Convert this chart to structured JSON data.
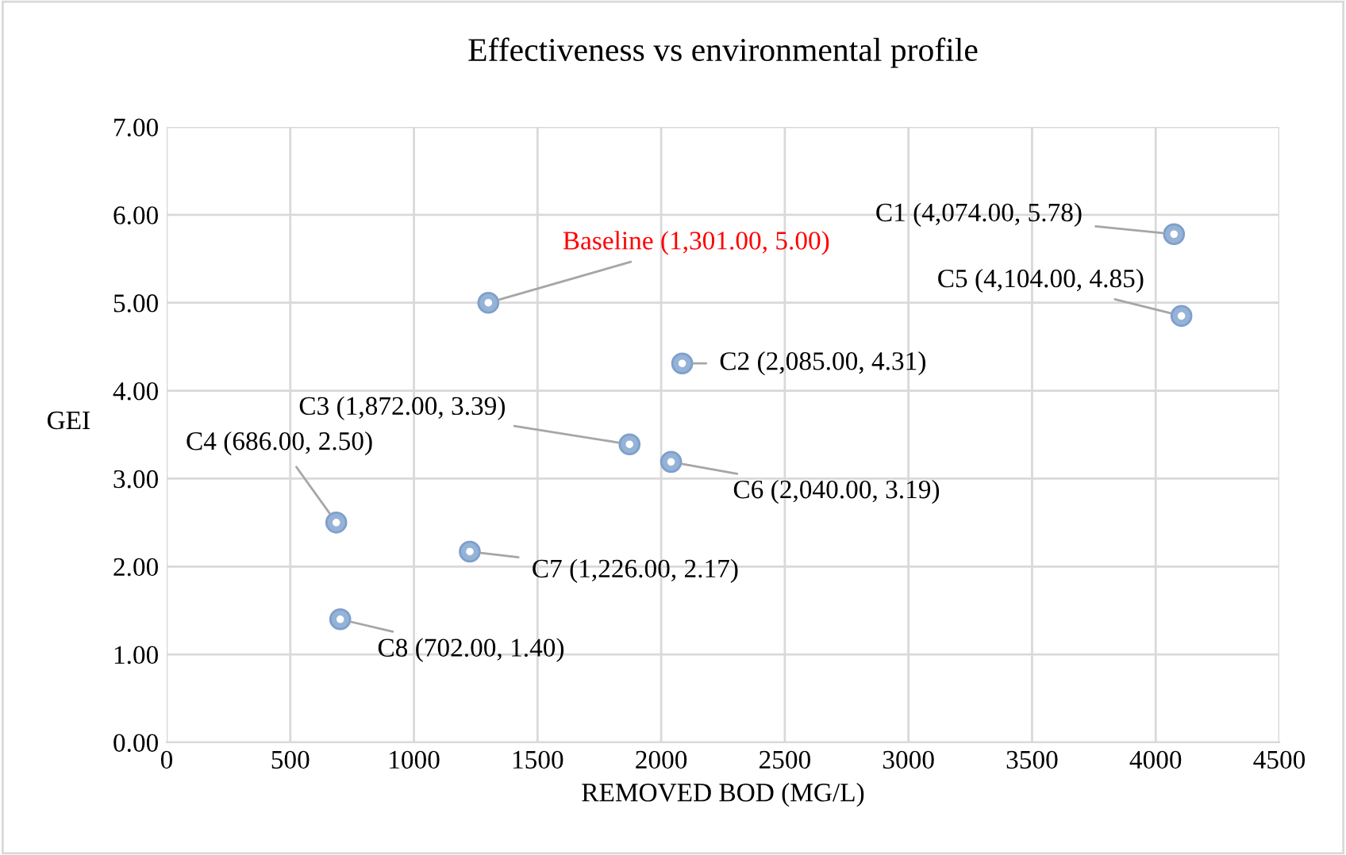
{
  "chart_data": {
    "type": "scatter",
    "title": "Effectiveness vs environmental profile",
    "xlabel": "REMOVED BOD (MG/L)",
    "ylabel": "GEI",
    "series": [
      {
        "color": "#95b3d7",
        "x": [
          1301
        ],
        "values": [
          5.0
        ],
        "value_labels": [
          "Baseline (1,301.00, 5.00)"
        ]
      },
      {
        "color": "#95b3d7",
        "x": [
          4074,
          2085,
          1872,
          686,
          4104,
          2040,
          1226,
          702
        ],
        "values": [
          5.78,
          4.31,
          3.39,
          2.5,
          4.85,
          3.19,
          2.17,
          1.4
        ],
        "value_labels": [
          "C1 (4,074.00, 5.78)",
          "C2 (2,085.00, 4.31)",
          "C3 (1,872.00, 3.39)",
          "C4 (686.00, 2.50)",
          "C5 (4,104.00, 4.85)",
          "C6 (2,040.00, 3.19)",
          "C7 (1,226.00, 2.17)",
          "C8 (702.00, 1.40)"
        ]
      }
    ],
    "xlim": [
      0,
      4500
    ],
    "xticks": [
      0,
      500,
      1000,
      1500,
      2000,
      2500,
      3000,
      3500,
      4000,
      4500
    ],
    "ylim": [
      0,
      7
    ],
    "yticks": [
      {
        "value": 0,
        "label": "0.00"
      },
      {
        "value": 1,
        "label": "1.00"
      },
      {
        "value": 2,
        "label": "2.00"
      },
      {
        "value": 3,
        "label": "3.00"
      },
      {
        "value": 4,
        "label": "4.00"
      },
      {
        "value": 5,
        "label": "5.00"
      },
      {
        "value": 6,
        "label": "6.00"
      },
      {
        "value": 7,
        "label": "7.00"
      }
    ],
    "grid": true,
    "marker": "circle"
  }
}
